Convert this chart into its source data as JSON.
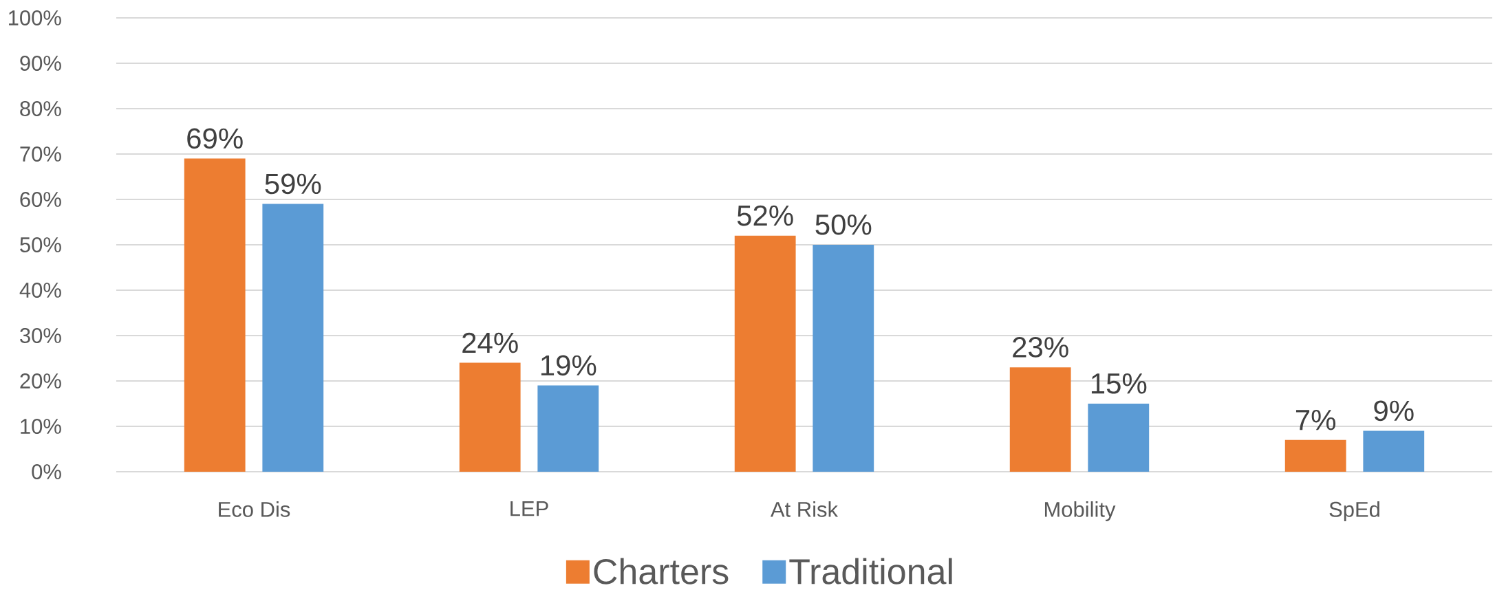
{
  "chart_data": {
    "type": "bar",
    "categories": [
      "Eco Dis",
      "LEP",
      "At Risk",
      "Mobility",
      "SpEd"
    ],
    "series": [
      {
        "name": "Charters",
        "color": "#ed7d31",
        "values": [
          69,
          24,
          52,
          23,
          7
        ],
        "value_labels": [
          "69%",
          "24%",
          "52%",
          "23%",
          "7%"
        ]
      },
      {
        "name": "Traditional",
        "color": "#5b9bd5",
        "values": [
          59,
          19,
          50,
          15,
          9
        ],
        "value_labels": [
          "59%",
          "19%",
          "50%",
          "15%",
          "9%"
        ]
      }
    ],
    "ylim": [
      0,
      100
    ],
    "yticks": [
      {
        "value": 0,
        "label": "0%"
      },
      {
        "value": 10,
        "label": "10%"
      },
      {
        "value": 20,
        "label": "20%"
      },
      {
        "value": 30,
        "label": "30%"
      },
      {
        "value": 40,
        "label": "40%"
      },
      {
        "value": 50,
        "label": "50%"
      },
      {
        "value": 60,
        "label": "60%"
      },
      {
        "value": 70,
        "label": "70%"
      },
      {
        "value": 80,
        "label": "80%"
      },
      {
        "value": 90,
        "label": "90%"
      },
      {
        "value": 100,
        "label": "100%"
      }
    ],
    "grid": "y",
    "legend": "bottom"
  }
}
